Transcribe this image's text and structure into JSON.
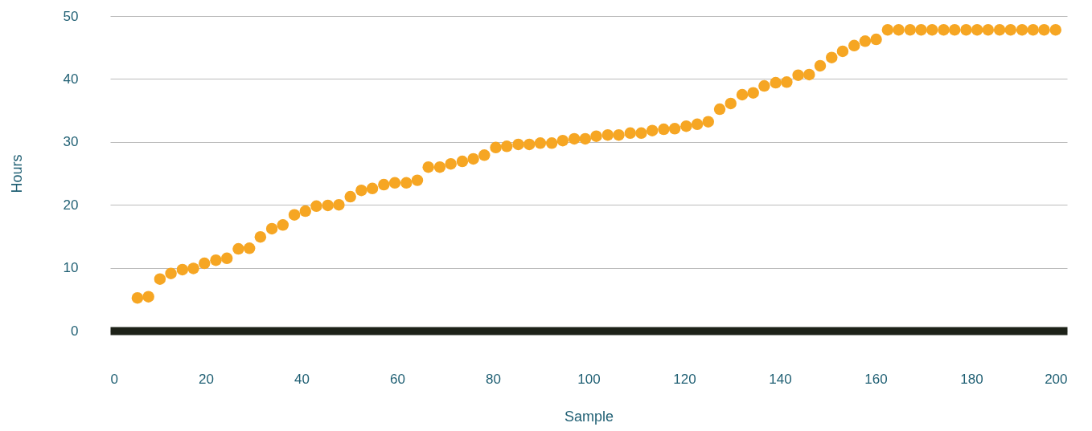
{
  "chart_data": {
    "type": "scatter",
    "xlabel": "Sample",
    "ylabel": "Hours",
    "x": [
      5.7,
      8.0,
      10.4,
      12.7,
      15.1,
      17.4,
      19.7,
      22.1,
      24.4,
      26.8,
      29.1,
      31.4,
      33.8,
      36.1,
      38.5,
      40.8,
      43.1,
      45.5,
      47.8,
      50.2,
      52.5,
      54.8,
      57.2,
      59.5,
      61.9,
      64.2,
      66.5,
      68.9,
      71.2,
      73.6,
      75.9,
      78.2,
      80.6,
      82.9,
      85.3,
      87.6,
      89.9,
      92.3,
      94.6,
      97.0,
      99.3,
      101.6,
      104.0,
      106.3,
      108.7,
      111.0,
      113.3,
      115.7,
      118.0,
      120.4,
      122.7,
      125.0,
      127.4,
      129.7,
      132.1,
      134.4,
      136.7,
      139.1,
      141.4,
      143.8,
      146.1,
      148.4,
      150.8,
      153.1,
      155.5,
      157.8,
      160.1,
      162.5,
      164.8,
      167.2,
      169.5,
      171.8,
      174.2,
      176.5,
      178.9,
      181.2,
      183.5,
      185.9,
      188.2,
      190.6,
      192.9,
      195.2,
      197.6
    ],
    "series": [
      {
        "color": "#f6a623",
        "values": [
          5.2,
          5.4,
          8.2,
          9.1,
          9.7,
          9.9,
          10.7,
          11.2,
          11.5,
          13.0,
          13.1,
          14.9,
          16.2,
          16.8,
          18.4,
          19.0,
          19.8,
          19.9,
          20.0,
          21.3,
          22.3,
          22.6,
          23.2,
          23.5,
          23.5,
          23.9,
          26.0,
          26.0,
          26.5,
          26.9,
          27.3,
          27.9,
          29.1,
          29.3,
          29.6,
          29.6,
          29.8,
          29.8,
          30.2,
          30.5,
          30.5,
          30.9,
          31.1,
          31.1,
          31.4,
          31.4,
          31.8,
          32.0,
          32.1,
          32.5,
          32.8,
          33.2,
          35.2,
          36.1,
          37.5,
          37.8,
          38.9,
          39.4,
          39.5,
          40.6,
          40.7,
          42.1,
          43.4,
          44.4,
          45.3,
          46.0,
          46.3,
          47.8,
          47.8,
          47.8,
          47.8,
          47.8,
          47.8,
          47.8,
          47.8,
          47.8,
          47.8,
          47.8,
          47.8,
          47.8,
          47.8,
          47.8,
          47.8
        ]
      }
    ],
    "xlim": [
      0,
      200
    ],
    "xticks": [
      0,
      20,
      40,
      60,
      80,
      100,
      120,
      140,
      160,
      180,
      200
    ],
    "ylim": [
      0,
      50
    ],
    "yticks": [
      0,
      10,
      20,
      30,
      40,
      50
    ],
    "grid": "y",
    "marker": "circle"
  }
}
